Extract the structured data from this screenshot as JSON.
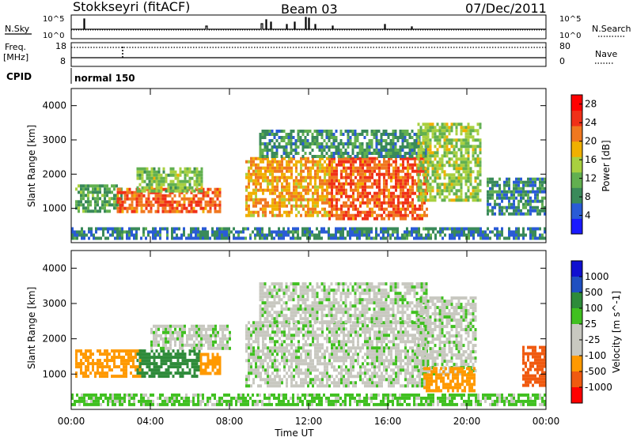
{
  "header": {
    "station": "Stokkseyri (fitACF)",
    "beam": "Beam 03",
    "date": "07/Dec/2011"
  },
  "panels": {
    "nsky": {
      "left_label": "N.Sky",
      "left_ticks": [
        "10^5",
        "10^0"
      ],
      "right_ticks": [
        "10^5",
        "10^0"
      ],
      "right_label": "N.Search"
    },
    "freq": {
      "left_label_1": "Freq.",
      "left_label_2": "[MHz]",
      "left_ticks": [
        "18",
        "8"
      ],
      "right_ticks": [
        "80",
        "0"
      ],
      "right_label": "Nave"
    },
    "cpid": {
      "label": "CPID",
      "text": "normal 150"
    }
  },
  "colors": {
    "power": [
      "#1a1aff",
      "#2a5bd6",
      "#3a8a5a",
      "#62b050",
      "#a8d040",
      "#f0b000",
      "#f07820",
      "#f03018",
      "#ff0000"
    ],
    "velocity": [
      "#ff0000",
      "#f05a10",
      "#ff9900",
      "#c8c8c0",
      "#c8c8c0",
      "#40c020",
      "#2e8b3a",
      "#2050c0",
      "#1010d0"
    ]
  },
  "chart_data": [
    {
      "type": "heatmap",
      "name": "power",
      "ylabel": "Slant Range [km]",
      "y_ticks": [
        "1000",
        "2000",
        "3000",
        "4000"
      ],
      "ylim": [
        0,
        4500
      ],
      "xlim": [
        0,
        24
      ],
      "colorbar_label": "Power [dB]",
      "colorbar_ticks": [
        "4",
        "8",
        "12",
        "16",
        "20",
        "24",
        "28"
      ],
      "colorbar_range": [
        0,
        30
      ],
      "bands": [
        {
          "x0": 0.2,
          "x1": 2.5,
          "y0": 900,
          "y1": 1700,
          "level": 10
        },
        {
          "x0": 2.3,
          "x1": 7.5,
          "y0": 900,
          "y1": 1600,
          "level": 24
        },
        {
          "x0": 3.3,
          "x1": 6.6,
          "y0": 1500,
          "y1": 2200,
          "level": 13
        },
        {
          "x0": 8.8,
          "x1": 13.2,
          "y0": 800,
          "y1": 2500,
          "level": 20
        },
        {
          "x0": 13.0,
          "x1": 18.0,
          "y0": 700,
          "y1": 2500,
          "level": 24
        },
        {
          "x0": 9.5,
          "x1": 18.0,
          "y0": 2500,
          "y1": 3300,
          "level": 8
        },
        {
          "x0": 17.5,
          "x1": 20.7,
          "y0": 1200,
          "y1": 3500,
          "level": 14
        },
        {
          "x0": 21.0,
          "x1": 23.9,
          "y0": 800,
          "y1": 1900,
          "level": 7
        },
        {
          "x0": 0.0,
          "x1": 23.9,
          "y0": 100,
          "y1": 450,
          "level": 6
        }
      ]
    },
    {
      "type": "heatmap",
      "name": "velocity",
      "xlabel": "Time UT",
      "ylabel": "Slant Range [km]",
      "x_ticks": [
        "00:00",
        "04:00",
        "08:00",
        "12:00",
        "16:00",
        "20:00",
        "00:00"
      ],
      "y_ticks": [
        "1000",
        "2000",
        "3000",
        "4000"
      ],
      "ylim": [
        0,
        4500
      ],
      "xlim": [
        0,
        24
      ],
      "colorbar_label": "Velocity [m s^-1]",
      "colorbar_ticks": [
        "1000",
        "500",
        "100",
        "25",
        "-25",
        "-100",
        "-500",
        "-1000"
      ],
      "bands": [
        {
          "x0": 0.2,
          "x1": 3.5,
          "y0": 900,
          "y1": 1700,
          "level": -300
        },
        {
          "x0": 3.3,
          "x1": 6.5,
          "y0": 900,
          "y1": 1700,
          "level": 200
        },
        {
          "x0": 4.0,
          "x1": 8.0,
          "y0": 1700,
          "y1": 2400,
          "level": 0
        },
        {
          "x0": 6.5,
          "x1": 7.5,
          "y0": 1000,
          "y1": 1600,
          "level": -200
        },
        {
          "x0": 8.8,
          "x1": 18.0,
          "y0": 700,
          "y1": 2500,
          "level": 0
        },
        {
          "x0": 9.5,
          "x1": 18.0,
          "y0": 2500,
          "y1": 3600,
          "level": 0
        },
        {
          "x0": 17.5,
          "x1": 20.5,
          "y0": 1000,
          "y1": 3200,
          "level": 0
        },
        {
          "x0": 17.8,
          "x1": 20.4,
          "y0": 500,
          "y1": 1200,
          "level": -400
        },
        {
          "x0": 22.8,
          "x1": 23.9,
          "y0": 700,
          "y1": 1800,
          "level": -600
        },
        {
          "x0": 0.0,
          "x1": 23.9,
          "y0": 100,
          "y1": 450,
          "level": 50
        }
      ]
    }
  ]
}
